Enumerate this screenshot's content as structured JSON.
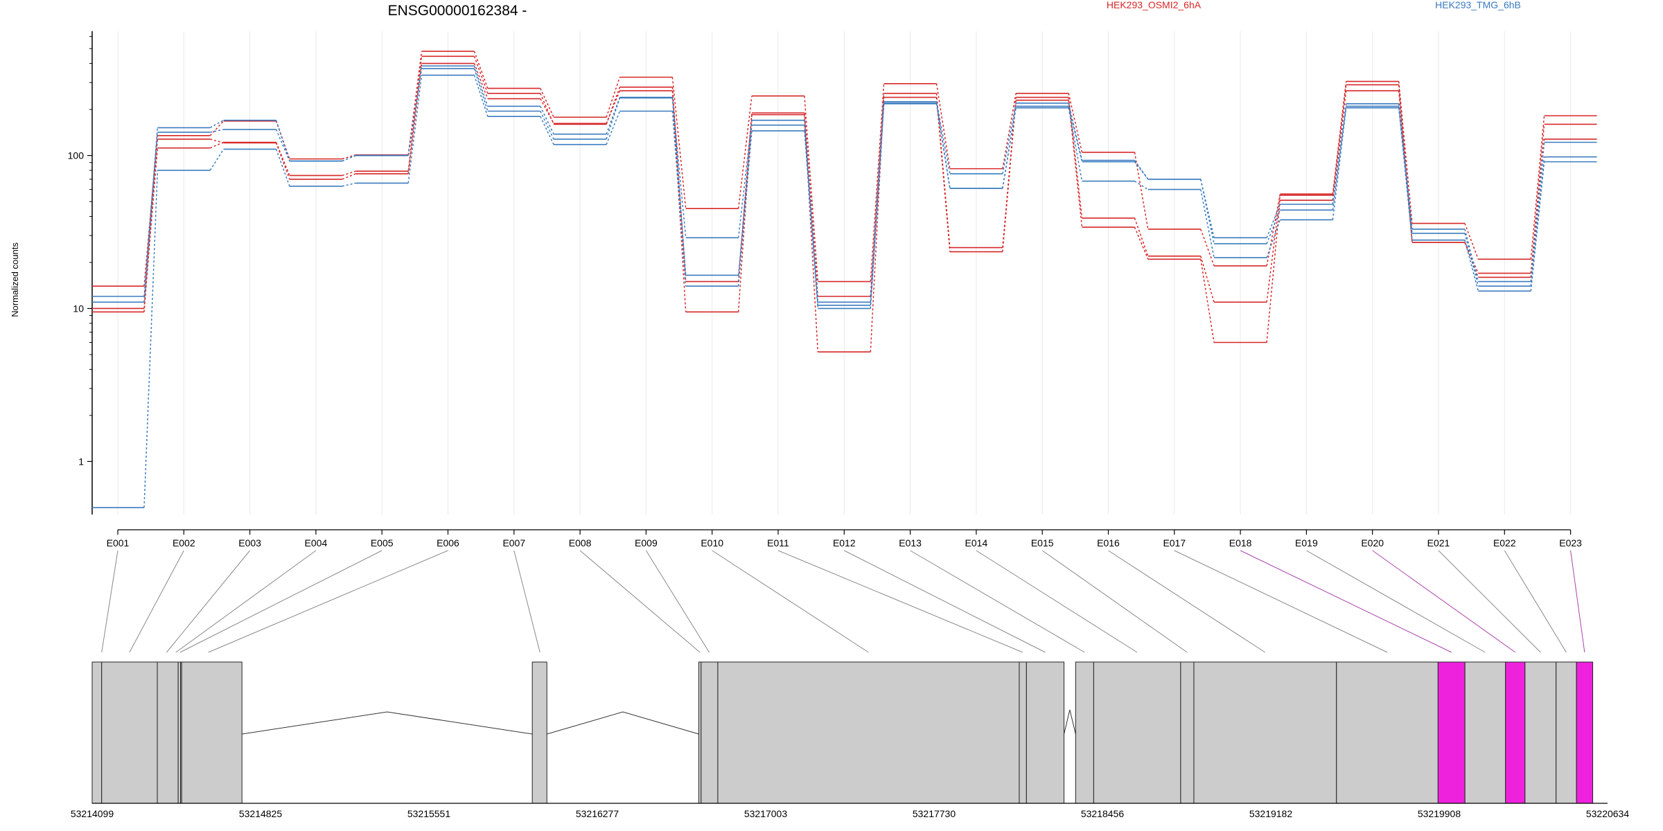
{
  "chart_data": [
    {
      "type": "line",
      "title": "ENSG00000162384 -",
      "ylabel": "Normalized counts",
      "yscale": "log",
      "ylim": [
        0.45,
        650
      ],
      "ytick_values": [
        1,
        10,
        100
      ],
      "ytick_labels": [
        "1",
        "10",
        "100"
      ],
      "categories": [
        "E001",
        "E002",
        "E003",
        "E004",
        "E005",
        "E006",
        "E007",
        "E008",
        "E009",
        "E010",
        "E011",
        "E012",
        "E013",
        "E014",
        "E015",
        "E016",
        "E017",
        "E018",
        "E019",
        "E020",
        "E021",
        "E022",
        "E023"
      ],
      "legend": [
        {
          "name": "HEK293_OSMI2_6hA",
          "color": "#d62728"
        },
        {
          "name": "HEK293_TMG_6hB",
          "color": "#3a7bbf"
        }
      ],
      "series": [
        {
          "group": "HEK293_OSMI2_6hA",
          "color": "#d62728",
          "values": [
            14,
            135,
            168,
            95,
            101,
            480,
            275,
            178,
            325,
            45,
            245,
            15,
            295,
            82,
            255,
            105,
            33,
            19,
            56,
            305,
            36,
            21,
            182
          ]
        },
        {
          "group": "HEK293_OSMI2_6hA",
          "color": "#d62728",
          "values": [
            10,
            112,
            122,
            74,
            79,
            445,
            255,
            160,
            280,
            15,
            190,
            12,
            255,
            25,
            240,
            39,
            22,
            11,
            55,
            290,
            27,
            17,
            160
          ]
        },
        {
          "group": "HEK293_OSMI2_6hA",
          "color": "#d62728",
          "values": [
            9.5,
            128,
            121,
            70,
            76,
            400,
            235,
            162,
            265,
            9.5,
            185,
            5.2,
            240,
            23.5,
            230,
            34,
            21,
            6,
            51,
            265,
            27,
            16,
            128
          ]
        },
        {
          "group": "HEK293_TMG_6hB",
          "color": "#3a7bbf",
          "values": [
            12,
            152,
            170,
            92,
            100,
            385,
            210,
            138,
            240,
            29,
            170,
            11,
            225,
            76,
            220,
            93,
            70,
            29,
            48,
            218,
            33,
            15,
            122
          ]
        },
        {
          "group": "HEK293_TMG_6hB",
          "color": "#3a7bbf",
          "values": [
            11,
            142,
            148,
            92,
            100,
            370,
            195,
            128,
            238,
            16.5,
            158,
            10.5,
            220,
            61,
            210,
            91,
            70,
            26.5,
            44,
            210,
            31,
            14,
            98
          ]
        },
        {
          "group": "HEK293_TMG_6hB",
          "color": "#3a7bbf",
          "values": [
            0.5,
            80,
            110,
            63,
            66,
            335,
            180,
            118,
            195,
            14,
            145,
            10,
            218,
            61,
            205,
            68,
            60,
            21.5,
            38,
            205,
            28,
            13,
            91
          ]
        }
      ]
    },
    {
      "type": "diagram",
      "description_note": "",
      "genomic_ticks": [
        "53214099",
        "53214825",
        "53215551",
        "53216277",
        "53217003",
        "53217730",
        "53218456",
        "53219182",
        "53219908",
        "53220634"
      ],
      "genomic_range": [
        53214099,
        53220634
      ],
      "exons": [
        {
          "id": "E001",
          "start": 53214099,
          "end": 53214140,
          "color": "#cccccc"
        },
        {
          "id": "E002",
          "start": 53214140,
          "end": 53214380,
          "color": "#cccccc"
        },
        {
          "id": "E003",
          "start": 53214380,
          "end": 53214470,
          "color": "#cccccc"
        },
        {
          "id": "E004",
          "start": 53214470,
          "end": 53214480,
          "color": "#cccccc"
        },
        {
          "id": "E005",
          "start": 53214480,
          "end": 53214485,
          "color": "#cccccc"
        },
        {
          "id": "E006",
          "start": 53214485,
          "end": 53214745,
          "color": "#cccccc"
        },
        {
          "id": "E007",
          "start": 53215997,
          "end": 53216060,
          "color": "#cccccc"
        },
        {
          "id": "E008",
          "start": 53216715,
          "end": 53216725,
          "color": "#cccccc"
        },
        {
          "id": "E009",
          "start": 53216725,
          "end": 53216797,
          "color": "#cccccc"
        },
        {
          "id": "E010",
          "start": 53216797,
          "end": 53218097,
          "color": "#cccccc"
        },
        {
          "id": "E011",
          "start": 53218097,
          "end": 53218128,
          "color": "#cccccc"
        },
        {
          "id": "E012",
          "start": 53218128,
          "end": 53218290,
          "color": "#cccccc"
        },
        {
          "id": "E013",
          "start": 53218340,
          "end": 53218418,
          "color": "#cccccc"
        },
        {
          "id": "E014",
          "start": 53218418,
          "end": 53218793,
          "color": "#cccccc"
        },
        {
          "id": "E015",
          "start": 53218793,
          "end": 53218850,
          "color": "#cccccc"
        },
        {
          "id": "E016",
          "start": 53218850,
          "end": 53219465,
          "color": "#cccccc"
        },
        {
          "id": "E017",
          "start": 53219465,
          "end": 53219903,
          "color": "#cccccc"
        },
        {
          "id": "E018",
          "start": 53219903,
          "end": 53220019,
          "color": "#ee22dd"
        },
        {
          "id": "E019",
          "start": 53220019,
          "end": 53220194,
          "color": "#cccccc"
        },
        {
          "id": "E020",
          "start": 53220194,
          "end": 53220278,
          "color": "#ee22dd"
        },
        {
          "id": "E021",
          "start": 53220278,
          "end": 53220412,
          "color": "#cccccc"
        },
        {
          "id": "E022",
          "start": 53220412,
          "end": 53220500,
          "color": "#cccccc"
        },
        {
          "id": "E023",
          "start": 53220500,
          "end": 53220570,
          "color": "#ee22dd"
        }
      ],
      "introns": [
        {
          "from": 53214745,
          "to": 53215997
        },
        {
          "from": 53216060,
          "to": 53216715
        },
        {
          "from": 53218290,
          "to": 53218340
        }
      ],
      "mapping_lines": [
        {
          "exon": "E001",
          "target": 53214140,
          "color": "#888888"
        },
        {
          "exon": "E002",
          "target": 53214260,
          "color": "#888888"
        },
        {
          "exon": "E003",
          "target": 53214420,
          "color": "#888888"
        },
        {
          "exon": "E004",
          "target": 53214460,
          "color": "#888888"
        },
        {
          "exon": "E005",
          "target": 53214478,
          "color": "#888888"
        },
        {
          "exon": "E006",
          "target": 53214600,
          "color": "#888888"
        },
        {
          "exon": "E007",
          "target": 53216030,
          "color": "#888888"
        },
        {
          "exon": "E008",
          "target": 53216720,
          "color": "#888888"
        },
        {
          "exon": "E009",
          "target": 53216760,
          "color": "#888888"
        },
        {
          "exon": "E010",
          "target": 53217447,
          "color": "#888888"
        },
        {
          "exon": "E011",
          "target": 53218112,
          "color": "#888888"
        },
        {
          "exon": "E012",
          "target": 53218209,
          "color": "#888888"
        },
        {
          "exon": "E013",
          "target": 53218379,
          "color": "#888888"
        },
        {
          "exon": "E014",
          "target": 53218605,
          "color": "#888888"
        },
        {
          "exon": "E015",
          "target": 53218821,
          "color": "#888888"
        },
        {
          "exon": "E016",
          "target": 53219157,
          "color": "#888888"
        },
        {
          "exon": "E017",
          "target": 53219684,
          "color": "#888888"
        },
        {
          "exon": "E018",
          "target": 53219961,
          "color": "#aa44aa"
        },
        {
          "exon": "E019",
          "target": 53220106,
          "color": "#888888"
        },
        {
          "exon": "E020",
          "target": 53220236,
          "color": "#aa44aa"
        },
        {
          "exon": "E021",
          "target": 53220345,
          "color": "#888888"
        },
        {
          "exon": "E022",
          "target": 53220456,
          "color": "#888888"
        },
        {
          "exon": "E023",
          "target": 53220535,
          "color": "#aa44aa"
        }
      ]
    }
  ]
}
